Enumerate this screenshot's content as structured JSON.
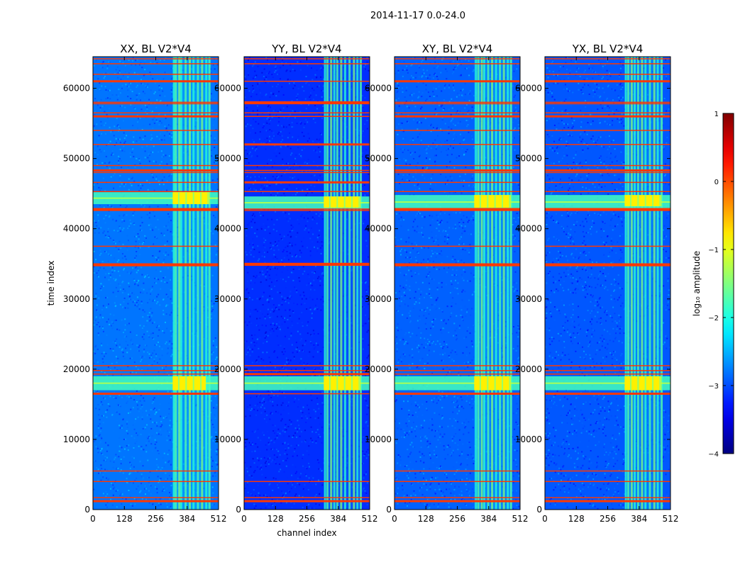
{
  "figure": {
    "suptitle": "2014-11-17 0.0-24.0"
  },
  "chart_data": [
    {
      "type": "heatmap",
      "title": "XX, BL V2*V4",
      "xlabel": "",
      "ylabel": "time index",
      "xlim": [
        0,
        512
      ],
      "ylim": [
        0,
        64500
      ],
      "xticks": [
        0,
        128,
        256,
        384,
        512
      ],
      "yticks": [
        0,
        10000,
        20000,
        30000,
        40000,
        50000,
        60000
      ],
      "background_log10_amplitude": -2.8,
      "channel_band": [
        325,
        480
      ],
      "band_columns": [
        330,
        338,
        352,
        360,
        378,
        395,
        410,
        428,
        445,
        462,
        475
      ],
      "bright_rows": [
        [
          17000,
          19000
        ],
        [
          43500,
          45200
        ]
      ],
      "bright_blocks": [
        [
          325,
          460,
          17000,
          19000
        ],
        [
          325,
          475,
          43500,
          45200
        ]
      ],
      "rfi_rows": [
        1200,
        1700,
        4000,
        5500,
        16500,
        19300,
        19800,
        20500,
        34800,
        35000,
        37500,
        42600,
        42800,
        45300,
        46600,
        48000,
        48300,
        49000,
        52000,
        54000,
        56000,
        56500,
        57800,
        58000,
        61000,
        62000,
        63500,
        64200
      ]
    },
    {
      "type": "heatmap",
      "title": "YY, BL V2*V4",
      "xlabel": "channel index",
      "ylabel": "",
      "xlim": [
        0,
        512
      ],
      "ylim": [
        0,
        64500
      ],
      "xticks": [
        0,
        128,
        256,
        384,
        512
      ],
      "yticks": [
        0,
        10000,
        20000,
        30000,
        40000,
        50000,
        60000
      ],
      "background_log10_amplitude": -3.15,
      "channel_band": [
        325,
        480
      ],
      "band_columns": [
        330,
        340,
        355,
        368,
        380,
        396,
        412,
        430,
        448,
        462,
        476
      ],
      "bright_rows": [
        [
          17000,
          19000
        ],
        [
          42800,
          44600
        ]
      ],
      "bright_blocks": [
        [
          325,
          475,
          17000,
          19000
        ],
        [
          325,
          475,
          43000,
          44600
        ]
      ],
      "rfi_rows": [
        1200,
        1700,
        4000,
        16500,
        19300,
        19800,
        20500,
        34800,
        35000,
        42600,
        42800,
        45300,
        46600,
        48000,
        48300,
        49000,
        52000,
        56000,
        56500,
        57800,
        58000,
        61000,
        63500,
        64200
      ]
    },
    {
      "type": "heatmap",
      "title": "XY, BL V2*V4",
      "xlabel": "",
      "ylabel": "",
      "xlim": [
        0,
        512
      ],
      "ylim": [
        0,
        64500
      ],
      "xticks": [
        0,
        128,
        256,
        384,
        512
      ],
      "yticks": [
        0,
        10000,
        20000,
        30000,
        40000,
        50000,
        60000
      ],
      "background_log10_amplitude": -2.9,
      "channel_band": [
        325,
        480
      ],
      "band_columns": [
        332,
        342,
        356,
        366,
        382,
        398,
        414,
        430,
        446,
        462,
        475
      ],
      "bright_rows": [
        [
          17000,
          19000
        ],
        [
          42800,
          44800
        ]
      ],
      "bright_blocks": [
        [
          325,
          475,
          17000,
          19000
        ],
        [
          325,
          475,
          43000,
          44800
        ]
      ],
      "rfi_rows": [
        1200,
        1700,
        4000,
        5500,
        16500,
        19300,
        19800,
        20500,
        34800,
        35000,
        37500,
        42600,
        42800,
        45300,
        46600,
        48000,
        48300,
        49000,
        52000,
        54000,
        56000,
        56500,
        57800,
        58000,
        61000,
        63500,
        64200
      ]
    },
    {
      "type": "heatmap",
      "title": "YX, BL V2*V4",
      "xlabel": "",
      "ylabel": "",
      "xlim": [
        0,
        512
      ],
      "ylim": [
        0,
        64500
      ],
      "xticks": [
        0,
        128,
        256,
        384,
        512
      ],
      "yticks": [
        0,
        10000,
        20000,
        30000,
        40000,
        50000,
        60000
      ],
      "background_log10_amplitude": -2.95,
      "channel_band": [
        325,
        480
      ],
      "band_columns": [
        330,
        340,
        354,
        366,
        380,
        396,
        410,
        428,
        446,
        460,
        476
      ],
      "bright_rows": [
        [
          17000,
          19000
        ],
        [
          42800,
          44800
        ]
      ],
      "bright_blocks": [
        [
          325,
          475,
          17000,
          19000
        ],
        [
          325,
          475,
          43200,
          44800
        ]
      ],
      "rfi_rows": [
        1200,
        1700,
        4000,
        5500,
        16500,
        19300,
        19800,
        20500,
        34800,
        35000,
        37500,
        42600,
        42800,
        45300,
        46600,
        48000,
        48300,
        49000,
        52000,
        54000,
        56000,
        56500,
        57800,
        58000,
        61000,
        62000,
        63500,
        64200
      ]
    }
  ],
  "colorbar": {
    "label": "log₁₀ amplitude",
    "colormap": "jet",
    "vmin": -4,
    "vmax": 1,
    "ticks": [
      -4,
      -3,
      -2,
      -1,
      0,
      1
    ],
    "tick_labels": [
      "−4",
      "−3",
      "−2",
      "−1",
      "0",
      "1"
    ]
  }
}
